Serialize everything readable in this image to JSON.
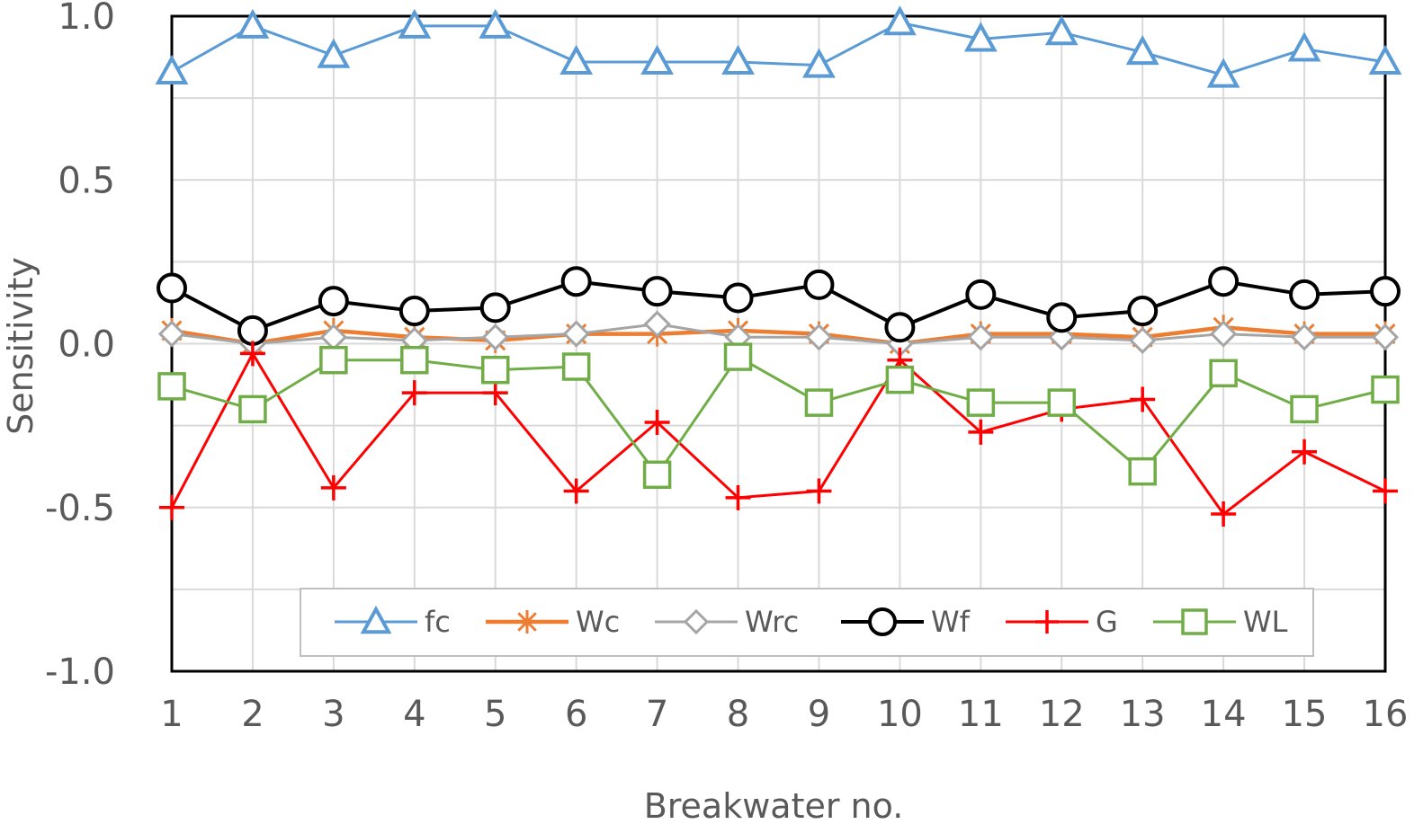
{
  "chart_data": {
    "type": "line",
    "title": "",
    "xlabel": "Breakwater no.",
    "ylabel": "Sensitivity",
    "ylim": [
      -1.0,
      1.0
    ],
    "yticks": [
      "1.0",
      "0.5",
      "0.0",
      "-0.5",
      "-1.0"
    ],
    "ytick_values": [
      1.0,
      0.5,
      0.0,
      -0.5,
      -1.0
    ],
    "categories": [
      "1",
      "2",
      "3",
      "4",
      "5",
      "6",
      "7",
      "8",
      "9",
      "10",
      "11",
      "12",
      "13",
      "14",
      "15",
      "16"
    ],
    "grid": true,
    "legend_position": "bottom-center",
    "series": [
      {
        "name": "fc",
        "color": "#5B9BD5",
        "marker": "triangle",
        "values": [
          0.83,
          0.97,
          0.88,
          0.97,
          0.97,
          0.86,
          0.86,
          0.86,
          0.85,
          0.98,
          0.93,
          0.95,
          0.89,
          0.82,
          0.9,
          0.86
        ]
      },
      {
        "name": "Wc",
        "color": "#ED7D31",
        "marker": "star",
        "values": [
          0.04,
          0.0,
          0.04,
          0.02,
          0.01,
          0.03,
          0.03,
          0.04,
          0.03,
          0.0,
          0.03,
          0.03,
          0.02,
          0.05,
          0.03,
          0.03
        ]
      },
      {
        "name": "Wrc",
        "color": "#A5A5A5",
        "marker": "diamond",
        "values": [
          0.03,
          0.0,
          0.02,
          0.01,
          0.02,
          0.03,
          0.06,
          0.02,
          0.02,
          0.0,
          0.02,
          0.02,
          0.01,
          0.03,
          0.02,
          0.02
        ]
      },
      {
        "name": "Wf",
        "color": "#000000",
        "marker": "circle",
        "values": [
          0.17,
          0.04,
          0.13,
          0.1,
          0.11,
          0.19,
          0.16,
          0.14,
          0.18,
          0.05,
          0.15,
          0.08,
          0.1,
          0.19,
          0.15,
          0.16
        ]
      },
      {
        "name": "G",
        "color": "#FF0000",
        "marker": "plus",
        "values": [
          -0.5,
          -0.03,
          -0.44,
          -0.15,
          -0.15,
          -0.45,
          -0.24,
          -0.47,
          -0.45,
          -0.05,
          -0.27,
          -0.2,
          -0.17,
          -0.52,
          -0.33,
          -0.45
        ]
      },
      {
        "name": "WL",
        "color": "#70AD47",
        "marker": "square",
        "values": [
          -0.13,
          -0.2,
          -0.05,
          -0.05,
          -0.08,
          -0.07,
          -0.4,
          -0.04,
          -0.18,
          -0.11,
          -0.18,
          -0.18,
          -0.39,
          -0.09,
          -0.2,
          -0.14
        ]
      }
    ]
  }
}
